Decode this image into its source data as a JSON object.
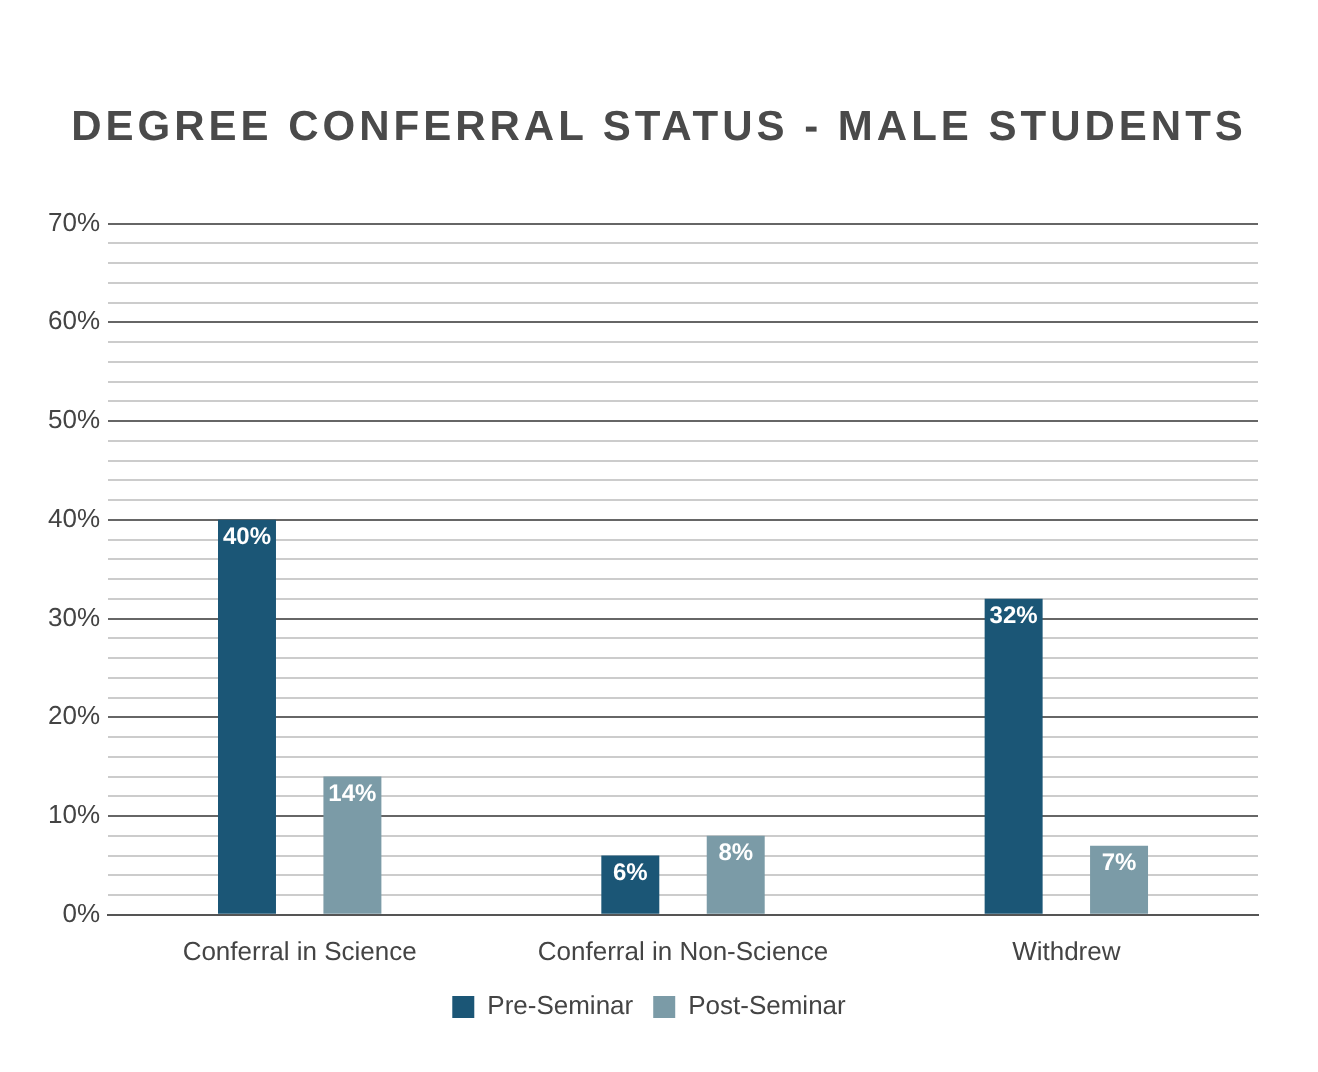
{
  "chart_data": {
    "type": "bar",
    "title": "DEGREE CONFERRAL STATUS - MALE STUDENTS",
    "categories": [
      "Conferral in Science",
      "Conferral in Non-Science",
      "Withdrew"
    ],
    "series": [
      {
        "name": "Pre-Seminar",
        "color": "#1b5676",
        "values": [
          40,
          6,
          32
        ],
        "value_labels": [
          "40%",
          "6%",
          "32%"
        ]
      },
      {
        "name": "Post-Seminar",
        "color": "#7b9ba7",
        "values": [
          14,
          8,
          7
        ],
        "value_labels": [
          "14%",
          "8%",
          "7%"
        ]
      }
    ],
    "ylim": [
      0,
      70
    ],
    "yticks": [
      {
        "value": 0,
        "label": "0%"
      },
      {
        "value": 2,
        "label": null
      },
      {
        "value": 4,
        "label": null
      },
      {
        "value": 6,
        "label": null
      },
      {
        "value": 8,
        "label": null
      },
      {
        "value": 10,
        "label": "10%"
      },
      {
        "value": 12,
        "label": null
      },
      {
        "value": 14,
        "label": null
      },
      {
        "value": 16,
        "label": null
      },
      {
        "value": 18,
        "label": null
      },
      {
        "value": 20,
        "label": "20%"
      },
      {
        "value": 22,
        "label": null
      },
      {
        "value": 24,
        "label": null
      },
      {
        "value": 26,
        "label": null
      },
      {
        "value": 28,
        "label": null
      },
      {
        "value": 30,
        "label": "30%"
      },
      {
        "value": 32,
        "label": null
      },
      {
        "value": 34,
        "label": null
      },
      {
        "value": 36,
        "label": null
      },
      {
        "value": 38,
        "label": null
      },
      {
        "value": 40,
        "label": "40%"
      },
      {
        "value": 42,
        "label": null
      },
      {
        "value": 44,
        "label": null
      },
      {
        "value": 46,
        "label": null
      },
      {
        "value": 48,
        "label": null
      },
      {
        "value": 50,
        "label": "50%"
      },
      {
        "value": 52,
        "label": null
      },
      {
        "value": 54,
        "label": null
      },
      {
        "value": 56,
        "label": null
      },
      {
        "value": 58,
        "label": null
      },
      {
        "value": 60,
        "label": "60%"
      },
      {
        "value": 62,
        "label": null
      },
      {
        "value": 64,
        "label": null
      },
      {
        "value": 66,
        "label": null
      },
      {
        "value": 68,
        "label": null
      },
      {
        "value": 70,
        "label": "70%"
      }
    ],
    "grid": "y",
    "legend": "bottom"
  }
}
